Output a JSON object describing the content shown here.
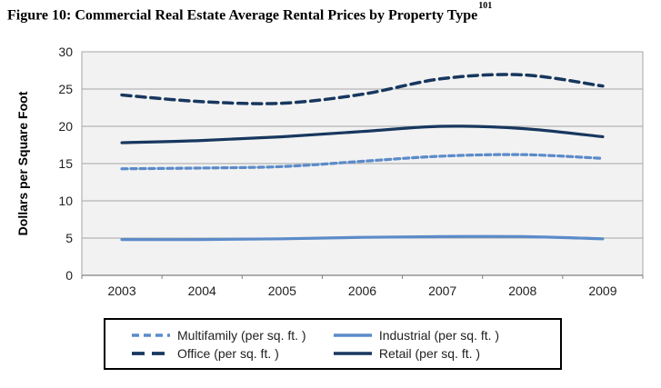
{
  "figure": {
    "title": "Figure 10: Commercial Real Estate Average Rental Prices by Property Type",
    "footnote_ref": "101"
  },
  "chart_data": {
    "type": "line",
    "title": "Figure 10: Commercial Real Estate Average Rental Prices by Property Type",
    "categories": [
      "2003",
      "2004",
      "2005",
      "2006",
      "2007",
      "2008",
      "2009"
    ],
    "series": [
      {
        "name": "Multifamily (per sq. ft. )",
        "values": [
          14.3,
          14.4,
          14.6,
          15.3,
          16.0,
          16.2,
          15.7
        ],
        "color": "#5B8BC9",
        "style": "dashed",
        "dash": "6 4",
        "width": 3.2,
        "legend_dash": "8 5"
      },
      {
        "name": "Industrial (per sq. ft. )",
        "values": [
          4.8,
          4.8,
          4.9,
          5.1,
          5.2,
          5.2,
          4.9
        ],
        "color": "#5B8BC9",
        "style": "solid",
        "dash": null,
        "width": 3.2,
        "legend_dash": null
      },
      {
        "name": "Office (per sq. ft. )",
        "values": [
          24.2,
          23.3,
          23.1,
          24.3,
          26.4,
          26.9,
          25.4
        ],
        "color": "#17375E",
        "style": "dashed",
        "dash": "10 6",
        "width": 3.5,
        "legend_dash": "14 8"
      },
      {
        "name": "Retail (per sq. ft. )",
        "values": [
          17.8,
          18.1,
          18.6,
          19.3,
          20.0,
          19.7,
          18.6
        ],
        "color": "#17375E",
        "style": "solid",
        "dash": null,
        "width": 3.2,
        "legend_dash": null
      }
    ],
    "xlabel": "",
    "ylabel": "Dollars per Square Foot",
    "ylim": [
      0,
      30
    ],
    "yticks": [
      0,
      5,
      10,
      15,
      20,
      25,
      30
    ],
    "grid": true,
    "legend_position": "bottom",
    "legend_order": [
      0,
      1,
      2,
      3
    ],
    "plot_bg": "#F2F2F2",
    "grid_color": "#A6A6A6",
    "axis_line_color": "#808080",
    "text_color": "#1f1f1f"
  }
}
